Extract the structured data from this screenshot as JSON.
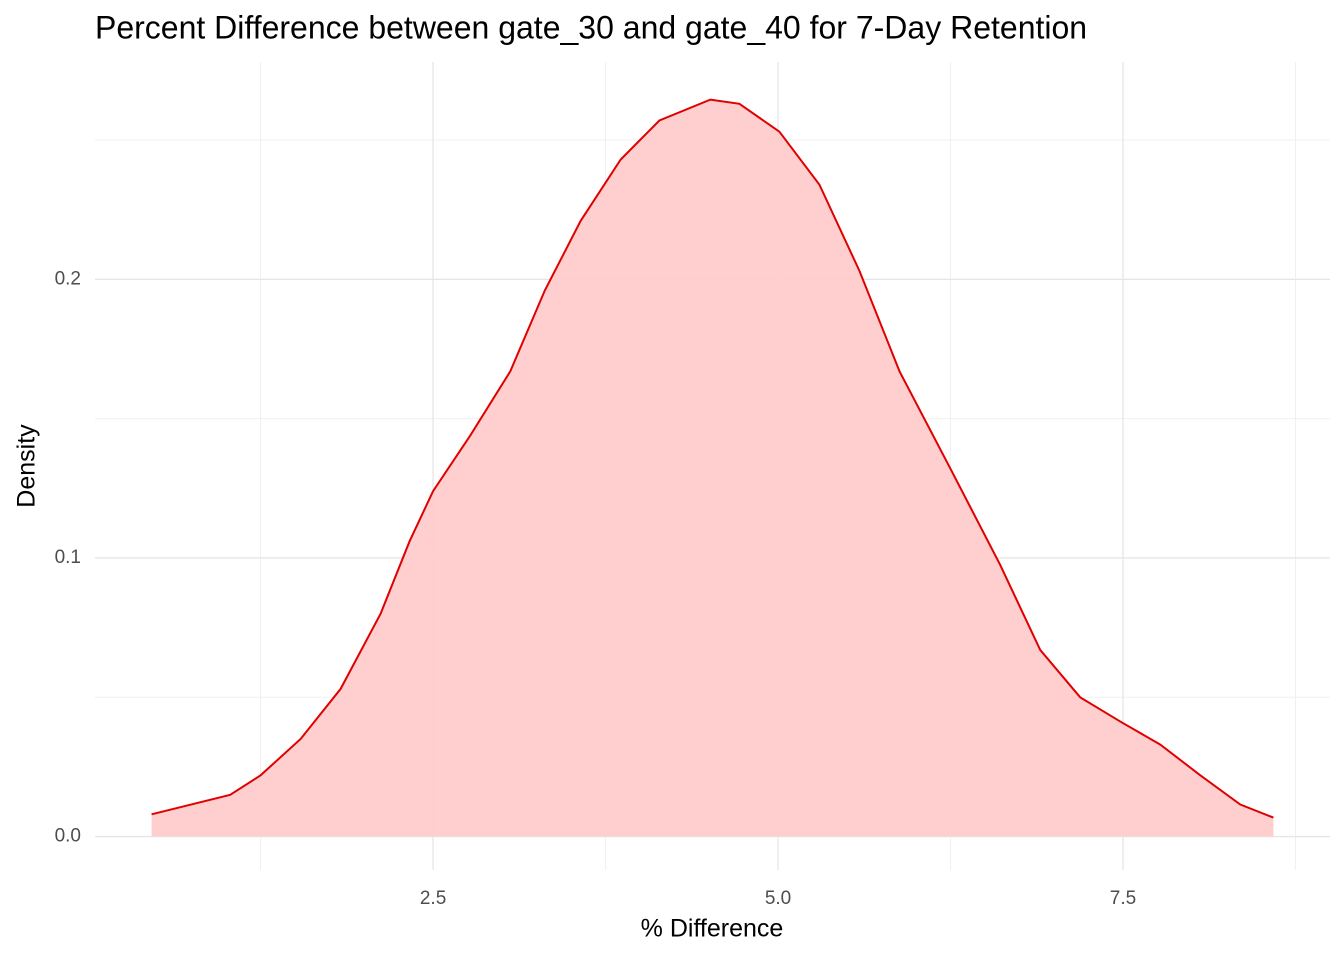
{
  "chart_data": {
    "type": "density",
    "title": "Percent Difference between gate_30 and gate_40 for 7-Day Retention",
    "x_label": "% Difference",
    "y_label": "Density",
    "x": [
      0.46,
      1.03,
      1.25,
      1.54,
      1.83,
      2.12,
      2.33,
      2.5,
      2.77,
      3.06,
      3.31,
      3.57,
      3.86,
      4.14,
      4.51,
      4.72,
      5.01,
      5.3,
      5.59,
      5.88,
      6.25,
      6.61,
      6.9,
      7.19,
      7.49,
      7.77,
      8.06,
      8.35,
      8.59
    ],
    "values": [
      0.008,
      0.015,
      0.022,
      0.035,
      0.053,
      0.08,
      0.106,
      0.124,
      0.144,
      0.167,
      0.196,
      0.221,
      0.243,
      0.257,
      0.2645,
      0.263,
      0.253,
      0.234,
      0.203,
      0.167,
      0.132,
      0.0975,
      0.067,
      0.05,
      0.041,
      0.033,
      0.022,
      0.0115,
      0.0068
    ],
    "color": "#e00000",
    "fill": "#ffcccc",
    "xlim": [
      0.05,
      9.0
    ],
    "ylim": [
      -0.012,
      0.278
    ],
    "xticks": [
      {
        "value": 2.5,
        "label": "2.5"
      },
      {
        "value": 5,
        "label": "5.0"
      },
      {
        "value": 7.5,
        "label": "7.5"
      }
    ],
    "yticks": [
      {
        "value": 0,
        "label": "0.0"
      },
      0.1,
      0.2
    ],
    "xminor": [
      1.25,
      3.75,
      6.25,
      8.75
    ],
    "yminor": [
      0.05,
      0.15,
      0.25
    ],
    "grid": true
  }
}
